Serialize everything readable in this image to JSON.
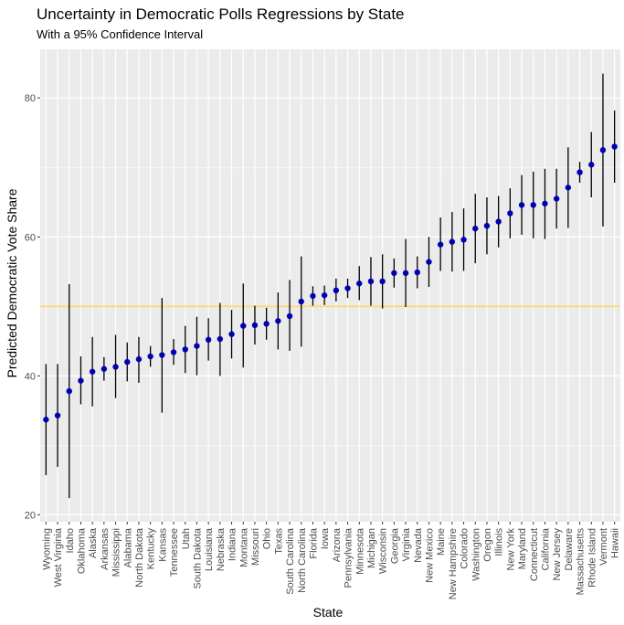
{
  "chart_data": {
    "type": "scatter",
    "title": "Uncertainty in Democratic Polls Regressions by State",
    "subtitle": "With a 95% Confidence Interval",
    "xlabel": "State",
    "ylabel": "Predicted Democratic Vote Share",
    "ylim": [
      19,
      87
    ],
    "yticks": [
      20,
      40,
      60,
      80
    ],
    "reference_line": 50,
    "grid": true,
    "colors": {
      "point": "#0000b3",
      "errorbar": "#000000",
      "reference": "#ffd966",
      "panel": "#ebebeb",
      "grid": "#ffffff"
    },
    "categories": [
      "Wyoming",
      "West Virginia",
      "Idaho",
      "Oklahoma",
      "Alaska",
      "Arkansas",
      "Mississippi",
      "Alabama",
      "North Dakota",
      "Kentucky",
      "Kansas",
      "Tennessee",
      "Utah",
      "South Dakota",
      "Louisiana",
      "Nebraska",
      "Indiana",
      "Montana",
      "Missouri",
      "Ohio",
      "Texas",
      "South Carolina",
      "North Carolina",
      "Florida",
      "Iowa",
      "Arizona",
      "Pennsylvania",
      "Minnesota",
      "Michigan",
      "Wisconsin",
      "Georgia",
      "Virginia",
      "Nevada",
      "New Mexico",
      "Maine",
      "New Hampshire",
      "Colorado",
      "Washington",
      "Oregon",
      "Illinois",
      "New York",
      "Maryland",
      "Connecticut",
      "California",
      "New Jersey",
      "Delaware",
      "Massachusetts",
      "Rhode Island",
      "Vermont",
      "Hawaii"
    ],
    "series": [
      {
        "values": [
          33.7,
          34.3,
          37.8,
          39.3,
          40.6,
          41.0,
          41.3,
          42.0,
          42.4,
          42.8,
          43.0,
          43.4,
          43.8,
          44.3,
          45.2,
          45.3,
          46.0,
          47.2,
          47.3,
          47.5,
          47.9,
          48.6,
          50.7,
          51.5,
          51.6,
          52.3,
          52.6,
          53.3,
          53.6,
          53.6,
          54.8,
          54.8,
          54.9,
          56.4,
          58.9,
          59.3,
          59.6,
          61.2,
          61.6,
          62.2,
          63.4,
          64.6,
          64.6,
          64.8,
          65.5,
          67.1,
          69.3,
          70.4,
          72.5,
          73.0
        ],
        "lower": [
          25.7,
          26.9,
          22.4,
          35.9,
          35.6,
          39.3,
          36.8,
          39.2,
          39.0,
          41.3,
          34.7,
          41.6,
          40.4,
          40.1,
          42.2,
          40.0,
          42.5,
          41.2,
          44.5,
          45.2,
          43.8,
          43.6,
          44.2,
          50.1,
          50.2,
          50.7,
          51.2,
          50.9,
          50.1,
          49.7,
          52.7,
          49.9,
          52.6,
          52.8,
          55.1,
          55.0,
          55.1,
          56.2,
          57.5,
          58.5,
          59.8,
          60.3,
          59.8,
          59.7,
          61.2,
          61.3,
          67.8,
          65.7,
          61.5,
          67.8
        ],
        "upper": [
          41.7,
          41.7,
          53.2,
          42.8,
          45.6,
          42.7,
          45.9,
          44.8,
          45.6,
          44.3,
          51.2,
          45.3,
          47.2,
          48.5,
          48.3,
          50.5,
          49.5,
          53.3,
          50.1,
          49.8,
          52.0,
          53.8,
          57.2,
          52.9,
          53.0,
          54.0,
          54.0,
          55.8,
          57.1,
          57.5,
          56.9,
          59.7,
          57.2,
          60.0,
          62.8,
          63.6,
          64.1,
          66.2,
          65.7,
          65.9,
          67.0,
          68.9,
          69.4,
          69.8,
          69.8,
          72.9,
          70.8,
          75.1,
          83.5,
          78.2
        ]
      }
    ]
  }
}
